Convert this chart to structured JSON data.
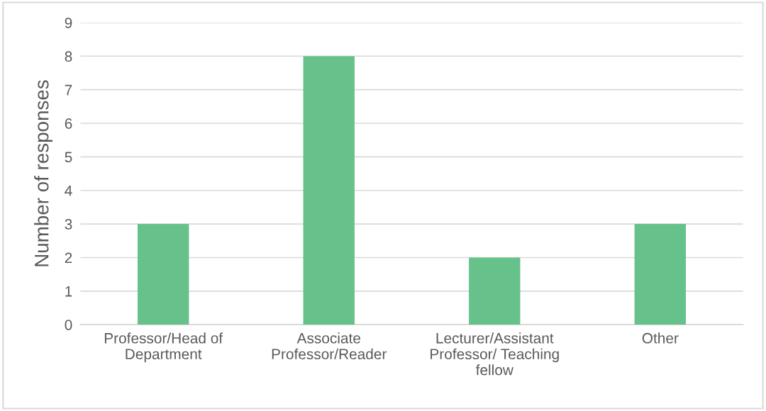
{
  "chart_data": {
    "type": "bar",
    "ylabel": "Number of responses",
    "categories": [
      "Professor/Head of\nDepartment",
      "Associate\nProfessor/Reader",
      "Lecturer/Assistant\nProfessor/ Teaching\nfellow",
      "Other"
    ],
    "values": [
      3,
      8,
      2,
      3
    ],
    "color": "#66c28a",
    "ylim": [
      0,
      9
    ],
    "yticks": [
      0,
      1,
      2,
      3,
      4,
      5,
      6,
      7,
      8,
      9
    ],
    "grid": "y",
    "legend": false
  }
}
